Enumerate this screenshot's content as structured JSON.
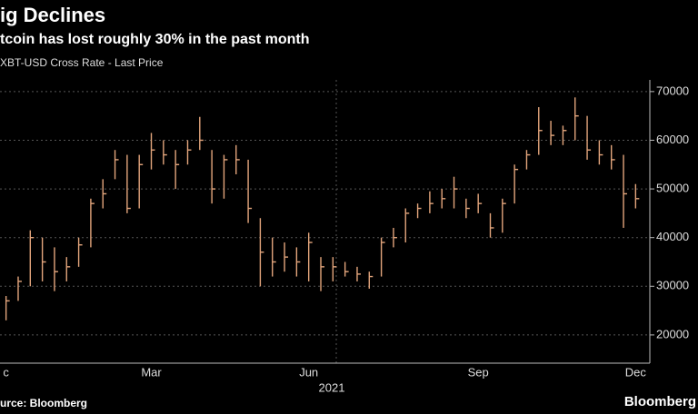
{
  "chart_data": {
    "type": "ohlc",
    "title": "ig Declines",
    "subtitle": "tcoin has lost roughly 30% in the past month",
    "series_label": "XBT-USD Cross Rate - Last Price",
    "source": "urce: Bloomberg",
    "brand": "Bloomberg",
    "x_group_label": "2021",
    "color": "#e3a57c",
    "categories": [
      "c",
      null,
      null,
      null,
      null,
      null,
      null,
      null,
      null,
      null,
      null,
      null,
      "Mar",
      null,
      null,
      null,
      null,
      null,
      null,
      null,
      null,
      null,
      null,
      null,
      null,
      "Jun",
      null,
      null,
      null,
      null,
      null,
      null,
      null,
      null,
      null,
      null,
      null,
      null,
      null,
      "Sep",
      null,
      null,
      null,
      null,
      null,
      null,
      null,
      null,
      null,
      null,
      null,
      null,
      "Dec"
    ],
    "high": [
      28000,
      32000,
      41500,
      40000,
      38000,
      36000,
      40000,
      48000,
      52000,
      58000,
      57000,
      57000,
      61500,
      60000,
      58000,
      60000,
      64800,
      58000,
      57000,
      59000,
      56000,
      44000,
      40000,
      39000,
      38000,
      41000,
      36000,
      36000,
      35000,
      34000,
      33000,
      40000,
      42000,
      46000,
      47000,
      49500,
      50000,
      52500,
      48000,
      49000,
      45000,
      48000,
      55000,
      58000,
      66800,
      64000,
      63000,
      68800,
      65000,
      60000,
      59000,
      57000,
      51000
    ],
    "low": [
      23000,
      27000,
      30000,
      31000,
      29000,
      31000,
      34000,
      38000,
      46000,
      52000,
      45000,
      46000,
      54000,
      55000,
      50000,
      55000,
      58000,
      47000,
      48000,
      53000,
      43000,
      30000,
      32000,
      33000,
      32000,
      31000,
      29000,
      31000,
      32000,
      31000,
      29500,
      32000,
      38000,
      39000,
      44000,
      45000,
      46000,
      46000,
      44000,
      45000,
      40000,
      41000,
      47000,
      54000,
      57000,
      59000,
      59000,
      60000,
      56000,
      55000,
      54000,
      42000,
      46000
    ],
    "close": [
      27000,
      31000,
      40000,
      35000,
      33000,
      34000,
      38500,
      47000,
      49000,
      56000,
      46000,
      55000,
      58000,
      57000,
      55000,
      58000,
      60000,
      50000,
      56000,
      56000,
      46000,
      37000,
      35000,
      36000,
      35000,
      39000,
      34000,
      34000,
      33000,
      32500,
      32000,
      39000,
      40000,
      45000,
      46000,
      47000,
      48000,
      50000,
      46000,
      47000,
      42000,
      47000,
      54000,
      57000,
      62000,
      61000,
      62000,
      65000,
      58000,
      57000,
      56000,
      49000,
      48000
    ],
    "ylim": [
      14200,
      72400
    ],
    "yticks": [
      20000,
      30000,
      40000,
      50000,
      60000,
      70000
    ],
    "grid": true
  }
}
